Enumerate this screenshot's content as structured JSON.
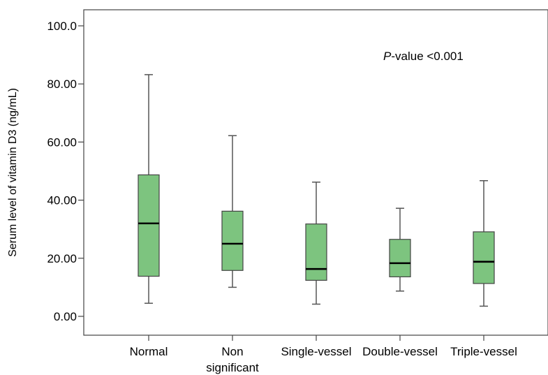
{
  "chart_data": {
    "type": "boxplot",
    "title": "",
    "xlabel": "",
    "ylabel": "Serum level of vitamin D3 (ng/mL)",
    "ylim": [
      -5,
      105
    ],
    "yticks": [
      0,
      20,
      40,
      60,
      80,
      100
    ],
    "ytick_labels": [
      "0.00",
      "20.00",
      "40.00",
      "60.00",
      "80.00",
      "100.0"
    ],
    "grid": false,
    "box_color": "#7dc47f",
    "line_color": "#000000",
    "annotation": {
      "italic": "P",
      "rest": "-value <0.001"
    },
    "categories": [
      {
        "label": [
          "Normal"
        ],
        "min": 4.5,
        "q1": 13.8,
        "median": 32.0,
        "q3": 48.7,
        "max": 83.2
      },
      {
        "label": [
          "Non",
          "significant"
        ],
        "min": 10.0,
        "q1": 15.8,
        "median": 25.0,
        "q3": 36.2,
        "max": 62.2
      },
      {
        "label": [
          "Single-vessel"
        ],
        "min": 4.2,
        "q1": 12.4,
        "median": 16.3,
        "q3": 31.8,
        "max": 46.2
      },
      {
        "label": [
          "Double-vessel"
        ],
        "min": 8.7,
        "q1": 13.6,
        "median": 18.3,
        "q3": 26.5,
        "max": 37.2
      },
      {
        "label": [
          "Triple-vessel"
        ],
        "min": 3.5,
        "q1": 11.3,
        "median": 18.8,
        "q3": 29.1,
        "max": 46.7
      }
    ]
  }
}
